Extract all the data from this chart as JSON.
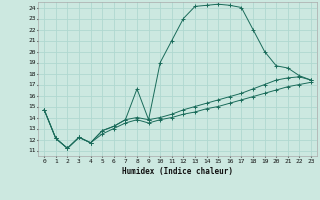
{
  "xlabel": "Humidex (Indice chaleur)",
  "bg_color": "#cce8e0",
  "grid_color": "#b0d8d0",
  "line_color": "#1a6b5a",
  "xlim": [
    -0.5,
    23.5
  ],
  "ylim": [
    10.5,
    24.5
  ],
  "xticks": [
    0,
    1,
    2,
    3,
    4,
    5,
    6,
    7,
    8,
    9,
    10,
    11,
    12,
    13,
    14,
    15,
    16,
    17,
    18,
    19,
    20,
    21,
    22,
    23
  ],
  "yticks": [
    11,
    12,
    13,
    14,
    15,
    16,
    17,
    18,
    19,
    20,
    21,
    22,
    23,
    24
  ],
  "line1_x": [
    0,
    1,
    2,
    3,
    4,
    5,
    6,
    7,
    8,
    9,
    10,
    11,
    12,
    13,
    14,
    15,
    16,
    17,
    18,
    19,
    20,
    21,
    22,
    23
  ],
  "line1_y": [
    14.7,
    12.1,
    11.2,
    12.2,
    11.7,
    12.8,
    13.2,
    13.8,
    16.6,
    13.8,
    19.0,
    21.0,
    23.0,
    24.1,
    24.2,
    24.3,
    24.2,
    24.0,
    22.0,
    20.0,
    18.7,
    18.5,
    17.8,
    17.4
  ],
  "line2_x": [
    0,
    1,
    2,
    3,
    4,
    5,
    6,
    7,
    8,
    9,
    10,
    11,
    12,
    13,
    14,
    15,
    16,
    17,
    18,
    19,
    20,
    21,
    22,
    23
  ],
  "line2_y": [
    14.7,
    12.1,
    11.2,
    12.2,
    11.7,
    12.8,
    13.2,
    13.8,
    14.0,
    13.8,
    14.0,
    14.3,
    14.7,
    15.0,
    15.3,
    15.6,
    15.9,
    16.2,
    16.6,
    17.0,
    17.4,
    17.6,
    17.7,
    17.4
  ],
  "line3_x": [
    0,
    1,
    2,
    3,
    4,
    5,
    6,
    7,
    8,
    9,
    10,
    11,
    12,
    13,
    14,
    15,
    16,
    17,
    18,
    19,
    20,
    21,
    22,
    23
  ],
  "line3_y": [
    14.7,
    12.1,
    11.2,
    12.2,
    11.7,
    12.5,
    13.0,
    13.5,
    13.8,
    13.5,
    13.8,
    14.0,
    14.3,
    14.5,
    14.8,
    15.0,
    15.3,
    15.6,
    15.9,
    16.2,
    16.5,
    16.8,
    17.0,
    17.2
  ]
}
